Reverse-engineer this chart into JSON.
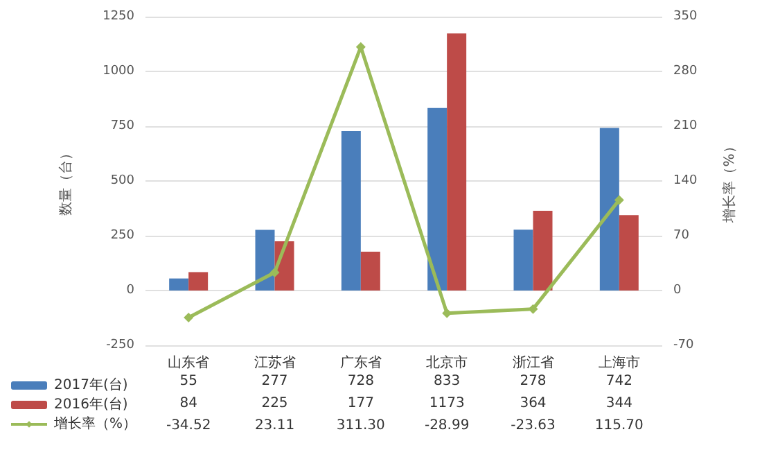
{
  "chart_data": {
    "type": "bar",
    "categories": [
      "山东省",
      "江苏省",
      "广东省",
      "北京市",
      "浙江省",
      "上海市"
    ],
    "series": [
      {
        "name": "2017年(台)",
        "color": "#4a7ebb",
        "values": [
          55,
          277,
          728,
          833,
          278,
          742
        ],
        "value_labels": [
          "55",
          "277",
          "728",
          "833",
          "278",
          "742"
        ]
      },
      {
        "name": "2016年(台)",
        "color": "#be4b48",
        "values": [
          84,
          225,
          177,
          1173,
          364,
          344
        ],
        "value_labels": [
          "84",
          "225",
          "177",
          "1173",
          "364",
          "344"
        ]
      },
      {
        "name": "增长率（%）",
        "type": "line",
        "axis": "y2",
        "color": "#9bbb59",
        "values": [
          -34.52,
          23.11,
          311.3,
          -28.99,
          -23.63,
          115.7
        ],
        "value_labels": [
          "-34.52",
          "23.11",
          "311.30",
          "-28.99",
          "-23.63",
          "115.70"
        ]
      }
    ],
    "ylabel": "数量（台）",
    "y2label": "增长率（%）",
    "ylim": [
      -250,
      1250
    ],
    "yticks": [
      -250,
      0,
      250,
      500,
      750,
      1000,
      1250
    ],
    "y2lim": [
      -70,
      350
    ],
    "y2ticks": [
      -70,
      0,
      70,
      140,
      210,
      280,
      350
    ],
    "grid": "y",
    "legend": "bottom left",
    "marker": "diamond",
    "line_style": "solid"
  }
}
